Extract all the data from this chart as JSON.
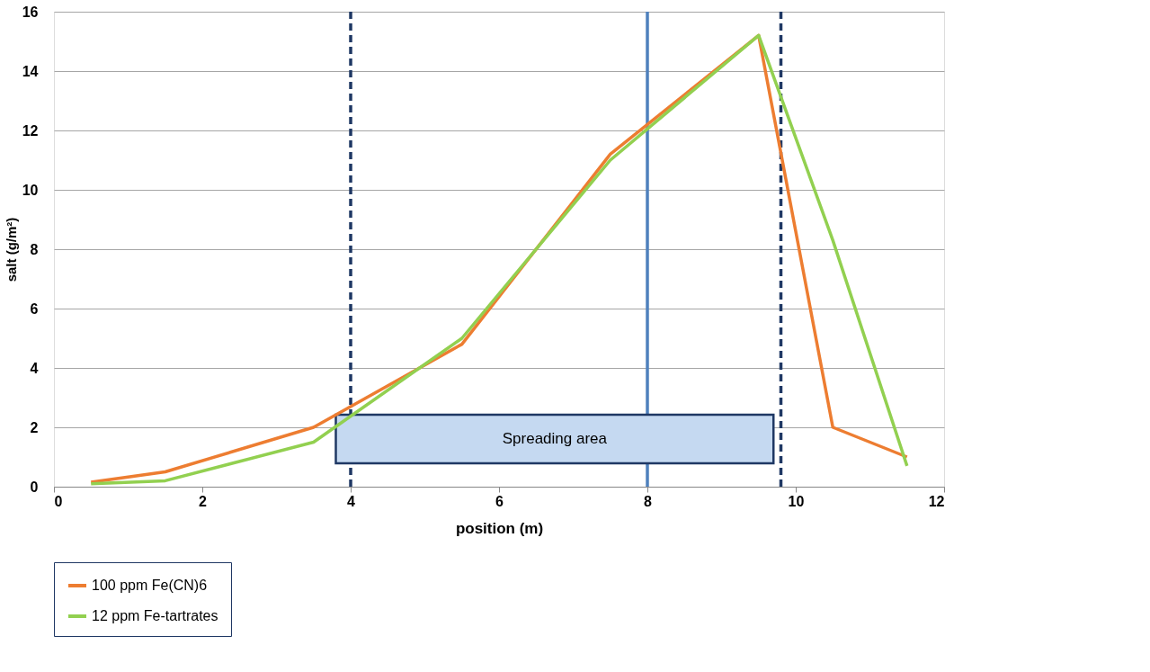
{
  "chart_data": {
    "type": "line",
    "xlabel": "position (m)",
    "ylabel": "salt (g/m²)",
    "xlim": [
      0,
      12
    ],
    "xticks": [
      0,
      2,
      4,
      6,
      8,
      10,
      12
    ],
    "ylim": [
      0,
      16
    ],
    "yticks": [
      0,
      2,
      4,
      6,
      8,
      10,
      12,
      14,
      16
    ],
    "grid": "y",
    "legend": "bottom left",
    "marker": "none",
    "line_style": "solid",
    "series": [
      {
        "name": "100 ppm Fe(CN)6",
        "color": "#ed7d31",
        "x": [
          0.5,
          1.5,
          3.5,
          5.5,
          7.5,
          9.5,
          10.5,
          11.5
        ],
        "values": [
          0.15,
          0.5,
          2.0,
          4.8,
          11.2,
          15.2,
          2.0,
          1.0
        ]
      },
      {
        "name": "12 ppm Fe-tartrates",
        "color": "#92d050",
        "x": [
          0.5,
          1.5,
          3.5,
          5.5,
          7.5,
          9.5,
          10.5,
          11.5
        ],
        "values": [
          0.1,
          0.2,
          1.5,
          5.0,
          11.0,
          15.2,
          8.3,
          0.7
        ]
      }
    ],
    "ref_lines": [
      {
        "axis": "x",
        "value": 4,
        "color": "#1f3864",
        "line_style": "dashed"
      },
      {
        "axis": "x",
        "value": 9.8,
        "color": "#1f3864",
        "line_style": "dashed"
      },
      {
        "axis": "x",
        "value": 8,
        "color": "#4f81bd",
        "line_style": "solid"
      }
    ],
    "bands": [
      {
        "axis": "x",
        "from": 3.8,
        "to": 9.7,
        "label": "Spreading area",
        "color": "#c5d9f1"
      }
    ]
  }
}
